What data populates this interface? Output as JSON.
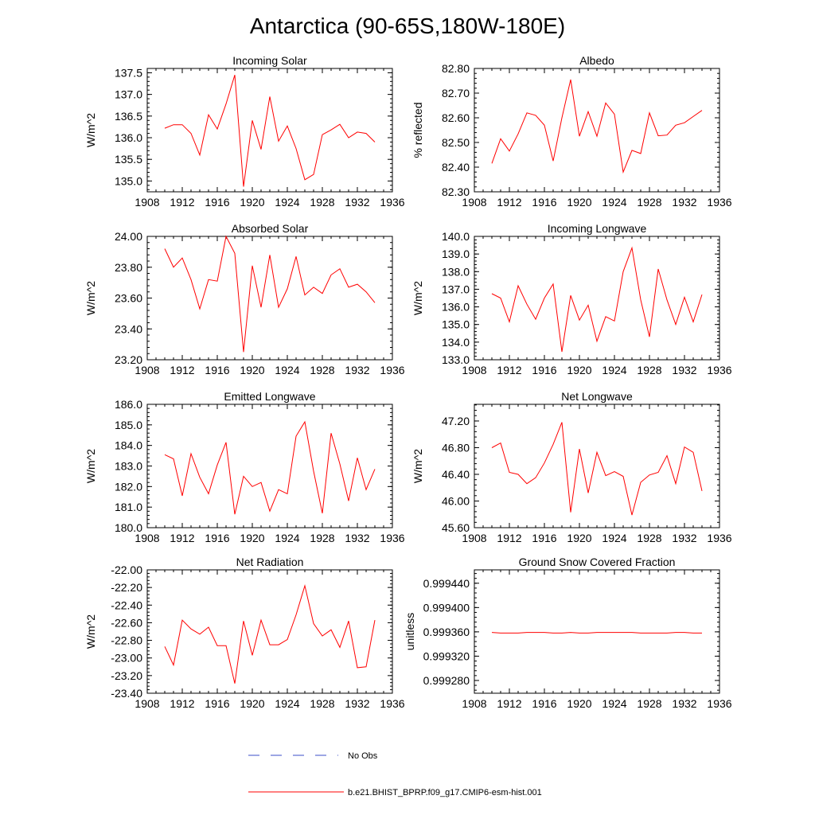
{
  "title": "Antarctica (90-65S,180W-180E)",
  "legend": [
    {
      "label": "No Obs",
      "color": "#3b4ec8",
      "dash": true
    },
    {
      "label": "b.e21.BHIST_BPRP.f09_g17.CMIP6-esm-hist.001",
      "color": "#ff0000",
      "dash": false
    }
  ],
  "chart_data": [
    {
      "type": "line",
      "title": "Incoming Solar",
      "ylabel": "W/m^2",
      "xlim": [
        1908,
        1936
      ],
      "xticks": [
        "1908",
        "1912",
        "1916",
        "1920",
        "1924",
        "1928",
        "1932",
        "1936"
      ],
      "ylim": [
        134.75,
        137.6
      ],
      "yticks": [
        "135.0",
        "135.5",
        "136.0",
        "136.5",
        "137.0",
        "137.5"
      ],
      "x": [
        1910,
        1911,
        1912,
        1913,
        1914,
        1915,
        1916,
        1917,
        1918,
        1919,
        1920,
        1921,
        1922,
        1923,
        1924,
        1925,
        1926,
        1927,
        1928,
        1929,
        1930,
        1931,
        1932,
        1933,
        1934
      ],
      "series": [
        {
          "color": "#ff0000",
          "values": [
            136.22,
            136.3,
            136.3,
            136.1,
            135.6,
            136.53,
            136.2,
            136.78,
            137.45,
            134.87,
            136.4,
            135.73,
            136.95,
            135.92,
            136.27,
            135.75,
            135.03,
            135.15,
            136.07,
            136.18,
            136.31,
            136.0,
            136.13,
            136.1,
            135.9
          ]
        }
      ]
    },
    {
      "type": "line",
      "title": "Albedo",
      "ylabel": "% reflected",
      "xlim": [
        1908,
        1936
      ],
      "xticks": [
        "1908",
        "1912",
        "1916",
        "1920",
        "1924",
        "1928",
        "1932",
        "1936"
      ],
      "ylim": [
        82.3,
        82.8
      ],
      "yticks": [
        "82.30",
        "82.40",
        "82.50",
        "82.60",
        "82.70",
        "82.80"
      ],
      "x": [
        1910,
        1911,
        1912,
        1913,
        1914,
        1915,
        1916,
        1917,
        1918,
        1919,
        1920,
        1921,
        1922,
        1923,
        1924,
        1925,
        1926,
        1927,
        1928,
        1929,
        1930,
        1931,
        1932,
        1933,
        1934
      ],
      "series": [
        {
          "color": "#ff0000",
          "values": [
            82.415,
            82.515,
            82.465,
            82.535,
            82.62,
            82.61,
            82.57,
            82.425,
            82.6,
            82.755,
            82.525,
            82.625,
            82.525,
            82.66,
            82.615,
            82.38,
            82.468,
            82.455,
            82.62,
            82.527,
            82.53,
            82.57,
            82.58,
            82.605,
            82.63
          ]
        }
      ]
    },
    {
      "type": "line",
      "title": "Absorbed Solar",
      "ylabel": "W/m^2",
      "xlim": [
        1908,
        1936
      ],
      "xticks": [
        "1908",
        "1912",
        "1916",
        "1920",
        "1924",
        "1928",
        "1932",
        "1936"
      ],
      "ylim": [
        23.2,
        24.0
      ],
      "yticks": [
        "23.20",
        "23.40",
        "23.60",
        "23.80",
        "24.00"
      ],
      "x": [
        1910,
        1911,
        1912,
        1913,
        1914,
        1915,
        1916,
        1917,
        1918,
        1919,
        1920,
        1921,
        1922,
        1923,
        1924,
        1925,
        1926,
        1927,
        1928,
        1929,
        1930,
        1931,
        1932,
        1933,
        1934
      ],
      "series": [
        {
          "color": "#ff0000",
          "values": [
            23.92,
            23.8,
            23.86,
            23.72,
            23.53,
            23.72,
            23.71,
            24.0,
            23.89,
            23.25,
            23.81,
            23.54,
            23.88,
            23.54,
            23.66,
            23.87,
            23.62,
            23.67,
            23.63,
            23.75,
            23.79,
            23.67,
            23.69,
            23.64,
            23.57
          ]
        }
      ]
    },
    {
      "type": "line",
      "title": "Incoming Longwave",
      "ylabel": "W/m^2",
      "xlim": [
        1908,
        1936
      ],
      "xticks": [
        "1908",
        "1912",
        "1916",
        "1920",
        "1924",
        "1928",
        "1932",
        "1936"
      ],
      "ylim": [
        133.0,
        140.0
      ],
      "yticks": [
        "133.0",
        "134.0",
        "135.0",
        "136.0",
        "137.0",
        "138.0",
        "139.0",
        "140.0"
      ],
      "x": [
        1910,
        1911,
        1912,
        1913,
        1914,
        1915,
        1916,
        1917,
        1918,
        1919,
        1920,
        1921,
        1922,
        1923,
        1924,
        1925,
        1926,
        1927,
        1928,
        1929,
        1930,
        1931,
        1932,
        1933,
        1934
      ],
      "series": [
        {
          "color": "#ff0000",
          "values": [
            136.75,
            136.5,
            135.15,
            137.2,
            136.15,
            135.3,
            136.5,
            137.3,
            133.45,
            136.65,
            135.25,
            136.1,
            134.05,
            135.45,
            135.2,
            138.0,
            139.35,
            136.4,
            134.3,
            138.15,
            136.4,
            135.0,
            136.55,
            135.15,
            136.7
          ]
        }
      ]
    },
    {
      "type": "line",
      "title": "Emitted Longwave",
      "ylabel": "W/m^2",
      "xlim": [
        1908,
        1936
      ],
      "xticks": [
        "1908",
        "1912",
        "1916",
        "1920",
        "1924",
        "1928",
        "1932",
        "1936"
      ],
      "ylim": [
        180.0,
        186.0
      ],
      "yticks": [
        "180.0",
        "181.0",
        "182.0",
        "183.0",
        "184.0",
        "185.0",
        "186.0"
      ],
      "x": [
        1910,
        1911,
        1912,
        1913,
        1914,
        1915,
        1916,
        1917,
        1918,
        1919,
        1920,
        1921,
        1922,
        1923,
        1924,
        1925,
        1926,
        1927,
        1928,
        1929,
        1930,
        1931,
        1932,
        1933,
        1934
      ],
      "series": [
        {
          "color": "#ff0000",
          "values": [
            183.55,
            183.35,
            181.55,
            183.6,
            182.45,
            181.65,
            183.05,
            184.15,
            180.65,
            182.5,
            182.0,
            182.2,
            180.8,
            181.85,
            181.65,
            184.45,
            185.15,
            182.75,
            180.7,
            184.6,
            183.1,
            181.3,
            183.4,
            181.85,
            182.85
          ]
        }
      ]
    },
    {
      "type": "line",
      "title": "Net Longwave",
      "ylabel": "W/m^2",
      "xlim": [
        1908,
        1936
      ],
      "xticks": [
        "1908",
        "1912",
        "1916",
        "1920",
        "1924",
        "1928",
        "1932",
        "1936"
      ],
      "ylim": [
        45.6,
        47.45
      ],
      "yticks": [
        "45.60",
        "46.00",
        "46.40",
        "46.80",
        "47.20"
      ],
      "x": [
        1910,
        1911,
        1912,
        1913,
        1914,
        1915,
        1916,
        1917,
        1918,
        1919,
        1920,
        1921,
        1922,
        1923,
        1924,
        1925,
        1926,
        1927,
        1928,
        1929,
        1930,
        1931,
        1932,
        1933,
        1934
      ],
      "series": [
        {
          "color": "#ff0000",
          "values": [
            46.8,
            46.87,
            46.43,
            46.4,
            46.26,
            46.35,
            46.57,
            46.85,
            47.18,
            45.83,
            46.78,
            46.12,
            46.73,
            46.38,
            46.44,
            46.37,
            45.79,
            46.28,
            46.39,
            46.43,
            46.68,
            46.26,
            46.81,
            46.73,
            46.15
          ]
        }
      ]
    },
    {
      "type": "line",
      "title": "Net Radiation",
      "ylabel": "W/m^2",
      "xlim": [
        1908,
        1936
      ],
      "xticks": [
        "1908",
        "1912",
        "1916",
        "1920",
        "1924",
        "1928",
        "1932",
        "1936"
      ],
      "ylim": [
        -23.4,
        -22.0
      ],
      "yticks": [
        "-23.40",
        "-23.20",
        "-23.00",
        "-22.80",
        "-22.60",
        "-22.40",
        "-22.20",
        "-22.00"
      ],
      "x": [
        1910,
        1911,
        1912,
        1913,
        1914,
        1915,
        1916,
        1917,
        1918,
        1919,
        1920,
        1921,
        1922,
        1923,
        1924,
        1925,
        1926,
        1927,
        1928,
        1929,
        1930,
        1931,
        1932,
        1933,
        1934
      ],
      "series": [
        {
          "color": "#ff0000",
          "values": [
            -22.87,
            -23.08,
            -22.57,
            -22.67,
            -22.73,
            -22.65,
            -22.86,
            -22.86,
            -23.29,
            -22.58,
            -22.97,
            -22.57,
            -22.85,
            -22.85,
            -22.79,
            -22.51,
            -22.18,
            -22.61,
            -22.75,
            -22.68,
            -22.88,
            -22.58,
            -23.11,
            -23.1,
            -22.57
          ]
        }
      ]
    },
    {
      "type": "line",
      "title": "Ground Snow Covered Fraction",
      "ylabel": "unitless",
      "xlim": [
        1908,
        1936
      ],
      "xticks": [
        "1908",
        "1912",
        "1916",
        "1920",
        "1924",
        "1928",
        "1932",
        "1936"
      ],
      "ylim": [
        0.999259,
        0.999462
      ],
      "yticks": [
        "0.999280",
        "0.999320",
        "0.999360",
        "0.999400",
        "0.999440"
      ],
      "x": [
        1910,
        1911,
        1912,
        1913,
        1914,
        1915,
        1916,
        1917,
        1918,
        1919,
        1920,
        1921,
        1922,
        1923,
        1924,
        1925,
        1926,
        1927,
        1928,
        1929,
        1930,
        1931,
        1932,
        1933,
        1934
      ],
      "series": [
        {
          "color": "#ff0000",
          "values": [
            0.999359,
            0.999358,
            0.999358,
            0.999358,
            0.999359,
            0.999359,
            0.999359,
            0.999358,
            0.999358,
            0.999359,
            0.999358,
            0.999358,
            0.999359,
            0.999359,
            0.999359,
            0.999359,
            0.999359,
            0.999358,
            0.999358,
            0.999358,
            0.999358,
            0.999359,
            0.999359,
            0.999358,
            0.999358
          ]
        }
      ]
    }
  ]
}
